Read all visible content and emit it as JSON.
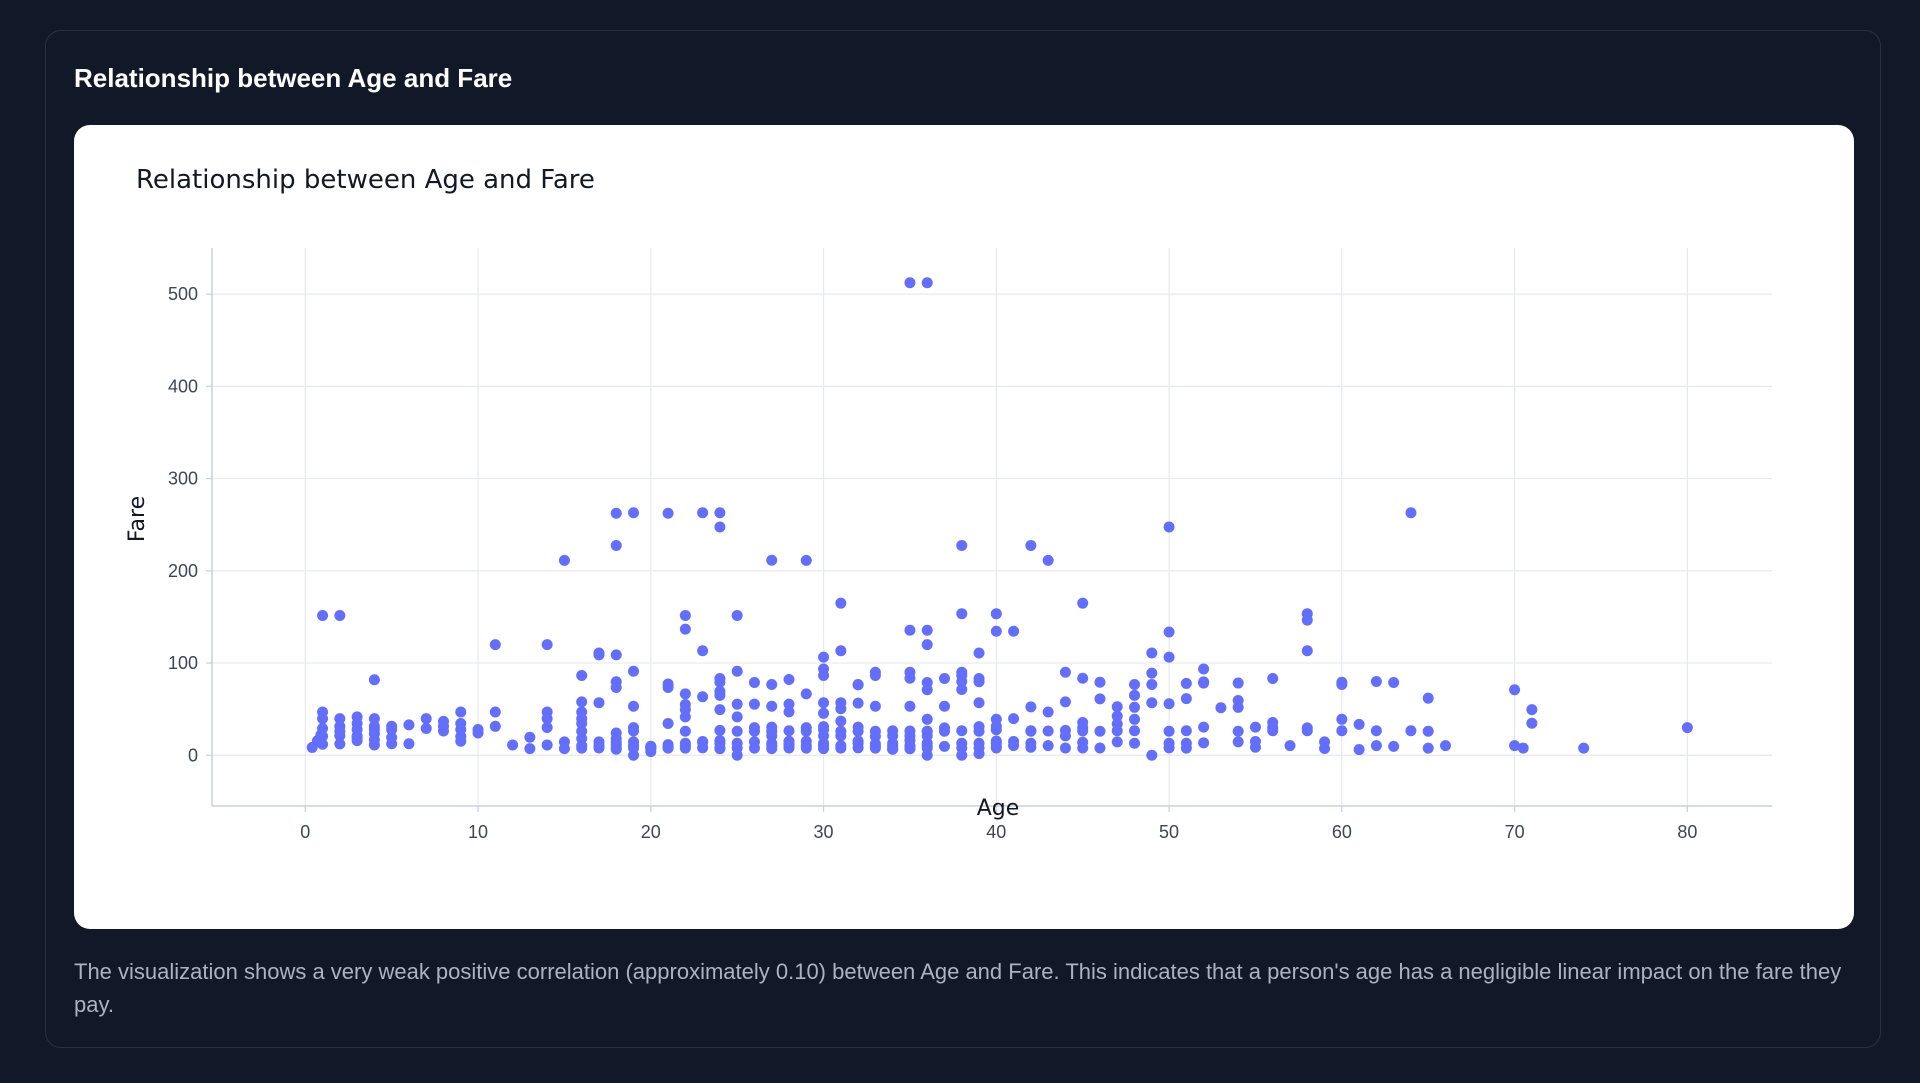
{
  "card": {
    "title": "Relationship between Age and Fare",
    "caption": "The visualization shows a very weak positive correlation (approximately 0.10) between Age and Fare. This indicates that a person's age has a negligible linear impact on the fare they pay."
  },
  "colors": {
    "page_background": "#111827",
    "chart_background": "#ffffff",
    "marker": "#636efa",
    "grid": "#e5e9f0"
  },
  "chart_data": {
    "type": "scatter",
    "title": "Relationship between Age and Fare",
    "xlabel": "Age",
    "ylabel": "Fare",
    "xlim": [
      -5.4,
      84.9
    ],
    "ylim": [
      -55,
      550
    ],
    "xticks": [
      0,
      10,
      20,
      30,
      40,
      50,
      60,
      70,
      80
    ],
    "yticks": [
      0,
      100,
      200,
      300,
      400,
      500
    ],
    "grid": true,
    "legend": "none",
    "series": [
      {
        "x": [
          0.4,
          0.7,
          0.9,
          1,
          1,
          1,
          1,
          1,
          1,
          2,
          2,
          2,
          2,
          2,
          2,
          3,
          3,
          3,
          3,
          3,
          3,
          4,
          4,
          4,
          4,
          4,
          4,
          4,
          5,
          5,
          5,
          5,
          6,
          6,
          7,
          7,
          8,
          8,
          8,
          9,
          9,
          9,
          9,
          9,
          10,
          10,
          11,
          11,
          11,
          12,
          13,
          13,
          14,
          14,
          14,
          14,
          14,
          15,
          15,
          15,
          16,
          16,
          16,
          16,
          16,
          16,
          16,
          16,
          16,
          17,
          17,
          17,
          17,
          17,
          17,
          18,
          18,
          18,
          18,
          18,
          18,
          18,
          18,
          18,
          18,
          18,
          19,
          19,
          19,
          19,
          19,
          19,
          19,
          19,
          19,
          20,
          20,
          20,
          20,
          20,
          20,
          21,
          21,
          21,
          21,
          21,
          21,
          21,
          22,
          22,
          22,
          22,
          22,
          22,
          22,
          22,
          22,
          22,
          23,
          23,
          23,
          23,
          23,
          23,
          24,
          24,
          24,
          24,
          24,
          24,
          24,
          24,
          24,
          24,
          24,
          24,
          25,
          25,
          25,
          25,
          25,
          25,
          25,
          25,
          26,
          26,
          26,
          26,
          26,
          26,
          27,
          27,
          27,
          27,
          27,
          27,
          27,
          27,
          27,
          28,
          28,
          28,
          28,
          28,
          28,
          28,
          28,
          28,
          29,
          29,
          29,
          29,
          29,
          29,
          29,
          30,
          30,
          30,
          30,
          30,
          30,
          30,
          30,
          30,
          30,
          30,
          31,
          31,
          31,
          31,
          31,
          31,
          31,
          31,
          31,
          32,
          32,
          32,
          32,
          32,
          32,
          32,
          32,
          33,
          33,
          33,
          33,
          33,
          33,
          33,
          33,
          34,
          34,
          34,
          34,
          34,
          34,
          34,
          35,
          35,
          35,
          35,
          35,
          35,
          35,
          35,
          35,
          35,
          35,
          36,
          36,
          36,
          36,
          36,
          36,
          36,
          36,
          36,
          36,
          36,
          36,
          36,
          37,
          37,
          37,
          37,
          37,
          38,
          38,
          38,
          38,
          38,
          38,
          38,
          38,
          38,
          38,
          39,
          39,
          39,
          39,
          39,
          39,
          39,
          39,
          39,
          40,
          40,
          40,
          40,
          40,
          40,
          40,
          40,
          40,
          41,
          41,
          41,
          41,
          42,
          42,
          42,
          42,
          42,
          42,
          43,
          43,
          43,
          43,
          44,
          44,
          44,
          44,
          44,
          45,
          45,
          45,
          45,
          45,
          45,
          45,
          46,
          46,
          46,
          46,
          47,
          47,
          47,
          47,
          47,
          48,
          48,
          48,
          48,
          48,
          48,
          49,
          49,
          49,
          49,
          49,
          50,
          50,
          50,
          50,
          50,
          50,
          50,
          51,
          51,
          51,
          51,
          51,
          52,
          52,
          52,
          52,
          52,
          53,
          54,
          54,
          54,
          54,
          54,
          55,
          55,
          55,
          56,
          56,
          56,
          56,
          57,
          58,
          58,
          58,
          58,
          58,
          59,
          59,
          60,
          60,
          60,
          60,
          61,
          61,
          62,
          62,
          62,
          63,
          63,
          64,
          64,
          65,
          65,
          65,
          66,
          70,
          70,
          70.5,
          71,
          71,
          74,
          80
        ],
        "y": [
          8.5,
          15.7,
          22,
          151.5,
          46.9,
          39.7,
          29.1,
          20.6,
          12,
          151.5,
          39.7,
          31.3,
          26,
          21.1,
          12.3,
          41.6,
          34.4,
          27.9,
          21,
          18.8,
          15.9,
          81.9,
          39.7,
          31.4,
          27.9,
          23.4,
          16.7,
          11.1,
          31.4,
          27.8,
          19.3,
          12.5,
          33,
          12.5,
          39.7,
          29.1,
          36.8,
          31.4,
          26.3,
          46.9,
          34.4,
          27.9,
          20.5,
          15.2,
          27.9,
          24.2,
          120,
          46.9,
          31.4,
          11.2,
          19.5,
          7.2,
          120,
          46.9,
          39.7,
          30.1,
          11.2,
          211.3,
          14.5,
          7.2,
          86.5,
          57.9,
          46.9,
          39.7,
          34.4,
          26,
          18,
          10.5,
          7.7,
          110.9,
          108.9,
          57,
          14.5,
          10.5,
          7.9,
          262.4,
          227.5,
          108.9,
          79.7,
          73.5,
          24.2,
          18,
          14.5,
          11.5,
          8.1,
          6.5,
          263,
          91.1,
          53.1,
          30,
          26.3,
          14.5,
          10.5,
          7.8,
          0,
          9.8,
          9.2,
          8.1,
          7.9,
          7.2,
          4,
          262.4,
          77.3,
          73.5,
          34.4,
          11.5,
          8.4,
          7.8,
          151.6,
          136.8,
          66.6,
          55,
          49.5,
          41.6,
          26,
          13,
          10.5,
          7.8,
          263,
          113.3,
          63.4,
          15,
          13.8,
          8.1,
          263,
          247.5,
          83.2,
          79.2,
          69.3,
          65,
          49.5,
          27,
          15.9,
          13,
          8.1,
          7.1,
          151.6,
          91.1,
          55.4,
          41.6,
          26,
          13,
          7.8,
          0,
          78.9,
          55.4,
          30,
          26,
          14.5,
          7.8,
          211.5,
          76.7,
          53.1,
          30.5,
          26,
          21,
          13,
          10.5,
          7.2,
          82.2,
          55.4,
          47.1,
          26.6,
          15.2,
          14.5,
          13,
          10.5,
          7.9,
          211.3,
          66.6,
          30,
          26,
          15.2,
          10.5,
          7.8,
          106.4,
          93.5,
          86.5,
          56.9,
          45.5,
          31,
          27.7,
          21,
          13,
          10.5,
          7.2,
          164.9,
          113.3,
          57,
          50.5,
          37,
          26,
          21,
          10.5,
          7.8,
          76.7,
          76.3,
          56.5,
          30.5,
          26,
          15.5,
          13,
          8.1,
          90,
          86.5,
          53.1,
          26,
          20.5,
          12.3,
          9.5,
          7.8,
          26.6,
          21,
          13,
          10.5,
          8.1,
          6.5,
          6.5,
          512.3,
          135.6,
          90,
          83.5,
          53.1,
          26.3,
          21,
          16.1,
          10.5,
          8.1,
          7.1,
          512.3,
          135.6,
          120,
          78.9,
          71,
          39,
          26,
          26,
          21,
          13,
          10.5,
          7.8,
          0,
          83.2,
          53.1,
          29.7,
          26,
          9.6,
          227.5,
          153.5,
          90,
          86.5,
          80,
          71.3,
          26.6,
          13,
          7.9,
          0,
          110.9,
          83.2,
          79.7,
          56.9,
          31,
          26,
          13,
          7.9,
          1.8,
          153.5,
          134.5,
          39,
          31.4,
          27.7,
          15.5,
          13,
          9.5,
          7.9,
          134.5,
          39.7,
          15,
          10.5,
          227.5,
          52.5,
          26.6,
          26,
          13,
          8.7,
          211.3,
          46.9,
          26.3,
          10.5,
          90,
          57.9,
          27,
          21,
          7.9,
          164.9,
          83.5,
          35.5,
          30,
          26.3,
          14.1,
          7.9,
          79.2,
          61.2,
          26,
          7.9,
          52.6,
          42.4,
          34,
          26.6,
          14.5,
          76.7,
          65,
          52,
          39,
          26.6,
          13,
          110.9,
          89.1,
          76.7,
          56.9,
          0,
          247.5,
          133.7,
          106.4,
          55.9,
          26,
          13,
          8,
          77.9,
          61.4,
          26.6,
          13,
          7.8,
          93.5,
          79.6,
          78.3,
          30.5,
          13.5,
          51.5,
          78.3,
          59.4,
          51.9,
          26,
          14.5,
          30.5,
          15,
          8.7,
          83.2,
          35.5,
          30,
          26.6,
          10.5,
          153.5,
          146.5,
          113.3,
          29.7,
          26.6,
          14.5,
          7.3,
          79.2,
          76.7,
          39,
          26.6,
          6.2,
          33.5,
          80,
          26.6,
          10.5,
          78.9,
          9.6,
          263,
          26.6,
          61.9,
          26,
          7.8,
          10.5,
          71,
          10.5,
          7.8,
          49.5,
          34.7,
          7.8,
          30
        ]
      }
    ]
  }
}
